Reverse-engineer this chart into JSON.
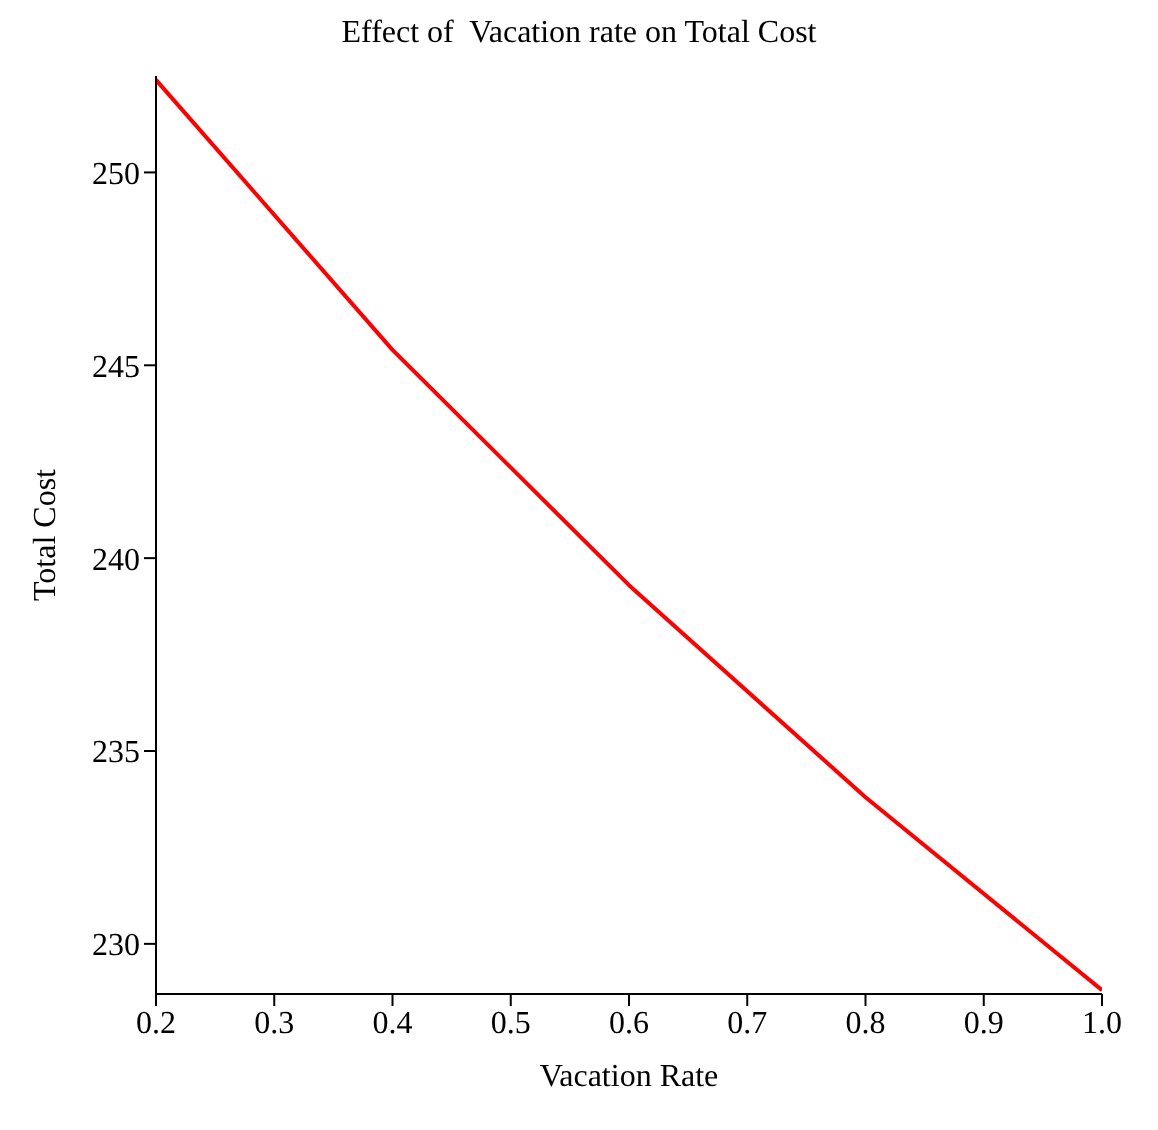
{
  "chart_data": {
    "type": "line",
    "title": "Effect of  Vacation rate on Total Cost",
    "xlabel": "Vacation Rate",
    "ylabel": "Total Cost",
    "x": [
      0.2,
      0.4,
      0.6,
      0.8,
      1.0
    ],
    "series": [
      {
        "color": "#ff0000",
        "values": [
          252.4,
          245.4,
          239.3,
          233.8,
          228.8
        ]
      }
    ],
    "xlim": [
      0.2,
      1.0
    ],
    "xticks": [
      0.2,
      0.3,
      0.4,
      0.5,
      0.6,
      0.7,
      0.8,
      0.9,
      {
        "value": 1,
        "label": "1.0"
      }
    ],
    "ylim": [
      228.7,
      252.5
    ],
    "yticks": [
      230,
      235,
      240,
      245,
      250
    ],
    "grid": false,
    "legend": false,
    "marker": "none",
    "line_style": "solid"
  }
}
